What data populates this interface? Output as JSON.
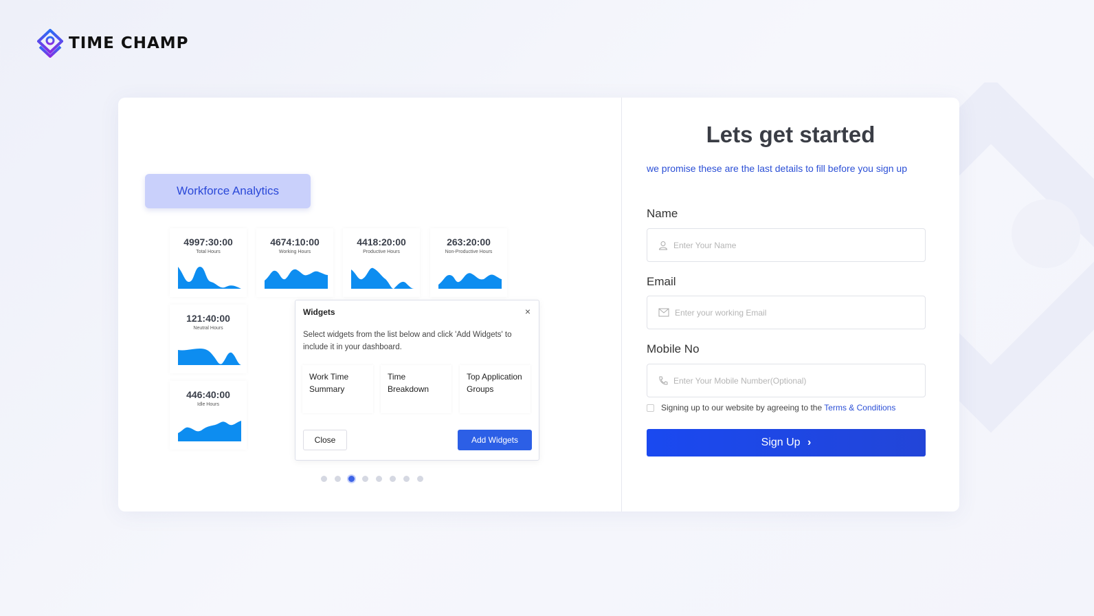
{
  "brand": {
    "name": "TIME CHAMP",
    "colors": {
      "primary": "#2b4fd6",
      "accent": "#7b3fe4"
    }
  },
  "left": {
    "badge": "Workforce Analytics",
    "stats": [
      {
        "value": "4997:30:00",
        "label": "Total Hours"
      },
      {
        "value": "4674:10:00",
        "label": "Working Hours"
      },
      {
        "value": "4418:20:00",
        "label": "Productive Hours"
      },
      {
        "value": "263:20:00",
        "label": "Non-Productive Hours"
      },
      {
        "value": "121:40:00",
        "label": "Neutral Hours"
      },
      {
        "value": "446:40:00",
        "label": "Idle Hours"
      }
    ],
    "modal": {
      "title": "Widgets",
      "close_icon": "×",
      "description": "Select widgets from the list below and click 'Add Widgets' to include it in your dashboard.",
      "options": [
        "Work Time Summary",
        "Time Breakdown",
        "Top Application Groups"
      ],
      "close_label": "Close",
      "add_label": "Add Widgets"
    },
    "carousel": {
      "count": 8,
      "active": 3
    }
  },
  "form": {
    "title": "Lets get started",
    "subtitle": "we promise these are the last details to fill before you sign up",
    "name_label": "Name",
    "name_placeholder": "Enter Your Name",
    "email_label": "Email",
    "email_placeholder": "Enter your working Email",
    "mobile_label": "Mobile No",
    "mobile_placeholder": "Enter Your Mobile Number(Optional)",
    "terms_text": "Signing up to our website by agreeing to the",
    "terms_link": "Terms & Conditions",
    "signup_label": "Sign Up",
    "signup_icon": "›"
  }
}
